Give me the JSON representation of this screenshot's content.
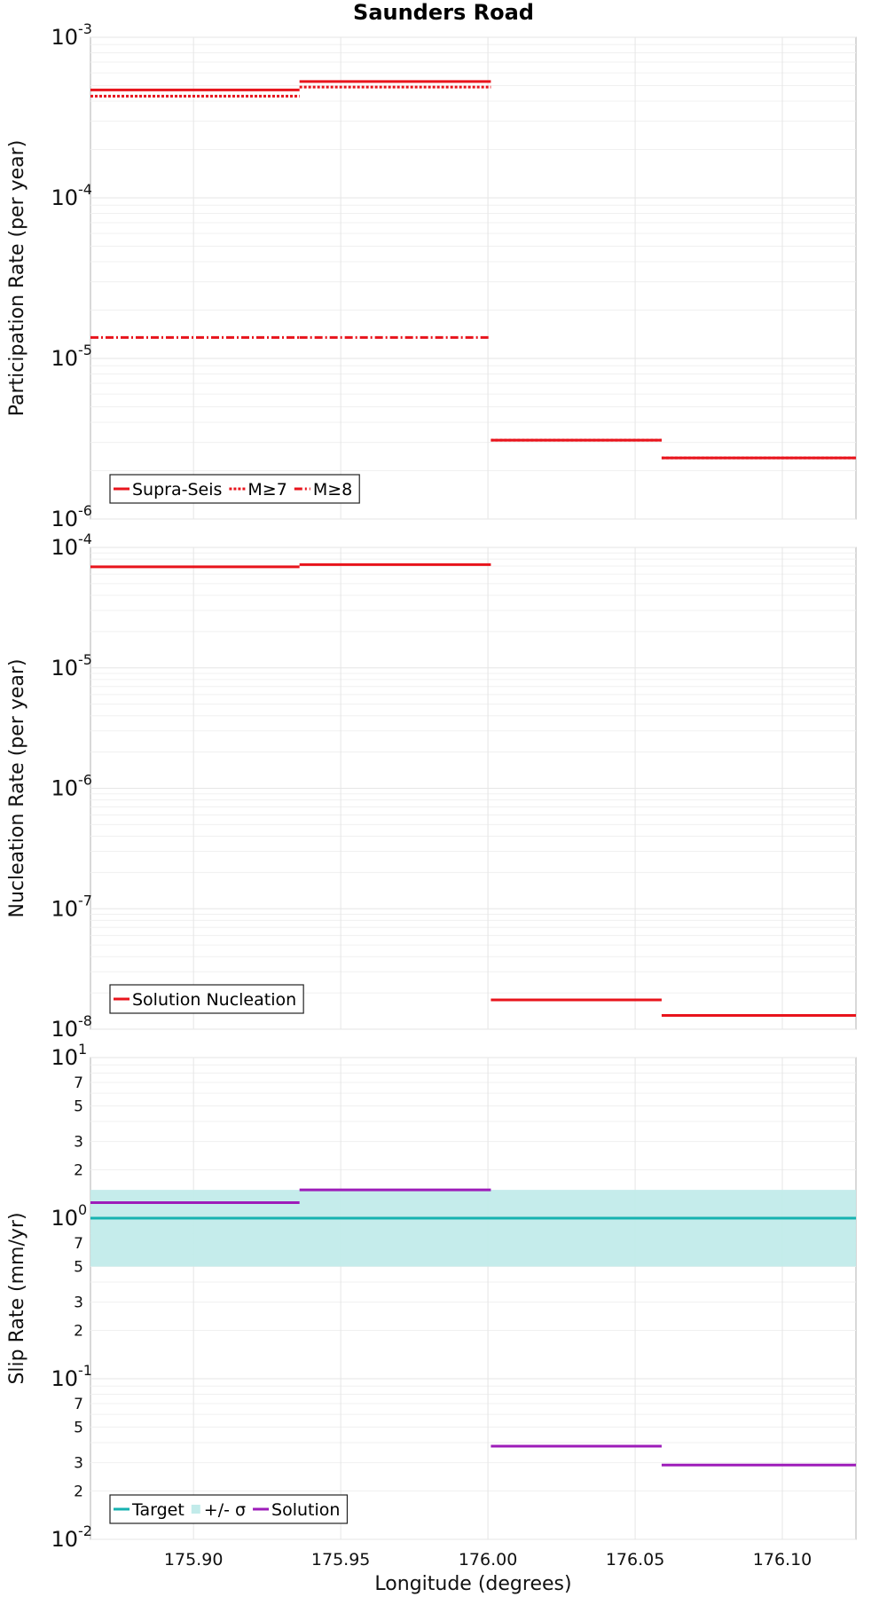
{
  "chart_data": [
    {
      "type": "line",
      "title": "Saunders Road",
      "xlabel": "",
      "ylabel": "Participation Rate (per year)",
      "yscale": "log",
      "xlim": [
        175.865,
        176.125
      ],
      "ylim": [
        1e-06,
        0.001
      ],
      "xticks": [
        175.9,
        175.95,
        176.0,
        176.05,
        176.1
      ],
      "xtick_labels": [],
      "ytick_decades": [
        {
          "value": 1e-06,
          "base": "10",
          "exp": "-6"
        },
        {
          "value": 1e-05,
          "base": "10",
          "exp": "-5"
        },
        {
          "value": 0.0001,
          "base": "10",
          "exp": "-4"
        },
        {
          "value": 0.001,
          "base": "10",
          "exp": "-3"
        }
      ],
      "yminor_labels": [],
      "legend_position": "bottom-left",
      "series": [
        {
          "name": "Supra-Seis",
          "color": "#e8141c",
          "style": "solid",
          "width": 3,
          "segments": [
            [
              175.865,
              175.936,
              0.00047
            ],
            [
              175.936,
              176.001,
              0.00053
            ],
            [
              176.001,
              176.059,
              3.1e-06
            ],
            [
              176.059,
              176.125,
              2.4e-06
            ]
          ]
        },
        {
          "name": "M≥7",
          "color": "#e8141c",
          "style": "dotted",
          "width": 3,
          "segments": [
            [
              175.865,
              175.936,
              0.00043
            ],
            [
              175.936,
              176.001,
              0.00049
            ],
            [
              176.001,
              176.059,
              3.1e-06
            ],
            [
              176.059,
              176.125,
              2.4e-06
            ]
          ]
        },
        {
          "name": "M≥8",
          "color": "#e8141c",
          "style": "dashdot",
          "width": 3,
          "segments": [
            [
              175.865,
              175.936,
              1.35e-05
            ],
            [
              175.936,
              176.001,
              1.35e-05
            ]
          ]
        }
      ]
    },
    {
      "type": "line",
      "title": "",
      "xlabel": "",
      "ylabel": "Nucleation Rate (per year)",
      "yscale": "log",
      "xlim": [
        175.865,
        176.125
      ],
      "ylim": [
        1e-08,
        0.0001
      ],
      "xticks": [
        175.9,
        175.95,
        176.0,
        176.05,
        176.1
      ],
      "xtick_labels": [],
      "ytick_decades": [
        {
          "value": 1e-08,
          "base": "10",
          "exp": "-8"
        },
        {
          "value": 1e-07,
          "base": "10",
          "exp": "-7"
        },
        {
          "value": 1e-06,
          "base": "10",
          "exp": "-6"
        },
        {
          "value": 1e-05,
          "base": "10",
          "exp": "-5"
        },
        {
          "value": 0.0001,
          "base": "10",
          "exp": "-4"
        }
      ],
      "yminor_labels": [],
      "legend_position": "bottom-left",
      "series": [
        {
          "name": "Solution Nucleation",
          "color": "#e8141c",
          "style": "solid",
          "width": 3,
          "segments": [
            [
              175.865,
              175.936,
              6.9e-05
            ],
            [
              175.936,
              176.001,
              7.2e-05
            ],
            [
              176.001,
              176.059,
              1.75e-08
            ],
            [
              176.059,
              176.125,
              1.3e-08
            ]
          ]
        }
      ]
    },
    {
      "type": "line",
      "title": "",
      "xlabel": "Longitude (degrees)",
      "ylabel": "Slip Rate (mm/yr)",
      "yscale": "log",
      "xlim": [
        175.865,
        176.125
      ],
      "ylim": [
        0.01,
        10
      ],
      "xticks": [
        175.9,
        175.95,
        176.0,
        176.05,
        176.1
      ],
      "xtick_labels": [
        "175.90",
        "175.95",
        "176.00",
        "176.05",
        "176.10"
      ],
      "ytick_decades": [
        {
          "value": 0.01,
          "base": "10",
          "exp": "-2"
        },
        {
          "value": 0.1,
          "base": "10",
          "exp": "-1"
        },
        {
          "value": 1,
          "base": "10",
          "exp": "0"
        },
        {
          "value": 10,
          "base": "10",
          "exp": "1"
        }
      ],
      "yminor_labels": [
        {
          "value": 0.02,
          "label": "2"
        },
        {
          "value": 0.03,
          "label": "3"
        },
        {
          "value": 0.05,
          "label": "5"
        },
        {
          "value": 0.07,
          "label": "7"
        },
        {
          "value": 0.2,
          "label": "2"
        },
        {
          "value": 0.3,
          "label": "3"
        },
        {
          "value": 0.5,
          "label": "5"
        },
        {
          "value": 0.7,
          "label": "7"
        },
        {
          "value": 2,
          "label": "2"
        },
        {
          "value": 3,
          "label": "3"
        },
        {
          "value": 5,
          "label": "5"
        },
        {
          "value": 7,
          "label": "7"
        }
      ],
      "legend_position": "bottom-left",
      "bands": [
        {
          "name": "+/- σ",
          "color": "#c2ebea",
          "x0": 175.865,
          "x1": 176.125,
          "y0": 0.5,
          "y1": 1.5
        }
      ],
      "series": [
        {
          "name": "Target",
          "color": "#16b2b0",
          "style": "solid",
          "width": 3,
          "segments": [
            [
              175.865,
              176.125,
              1.0
            ]
          ]
        },
        {
          "name": "Solution",
          "color": "#9d1cb9",
          "style": "solid",
          "width": 3,
          "segments": [
            [
              175.865,
              175.936,
              1.25
            ],
            [
              175.936,
              176.001,
              1.5
            ],
            [
              176.001,
              176.059,
              0.038
            ],
            [
              176.059,
              176.125,
              0.029
            ]
          ]
        }
      ]
    }
  ]
}
